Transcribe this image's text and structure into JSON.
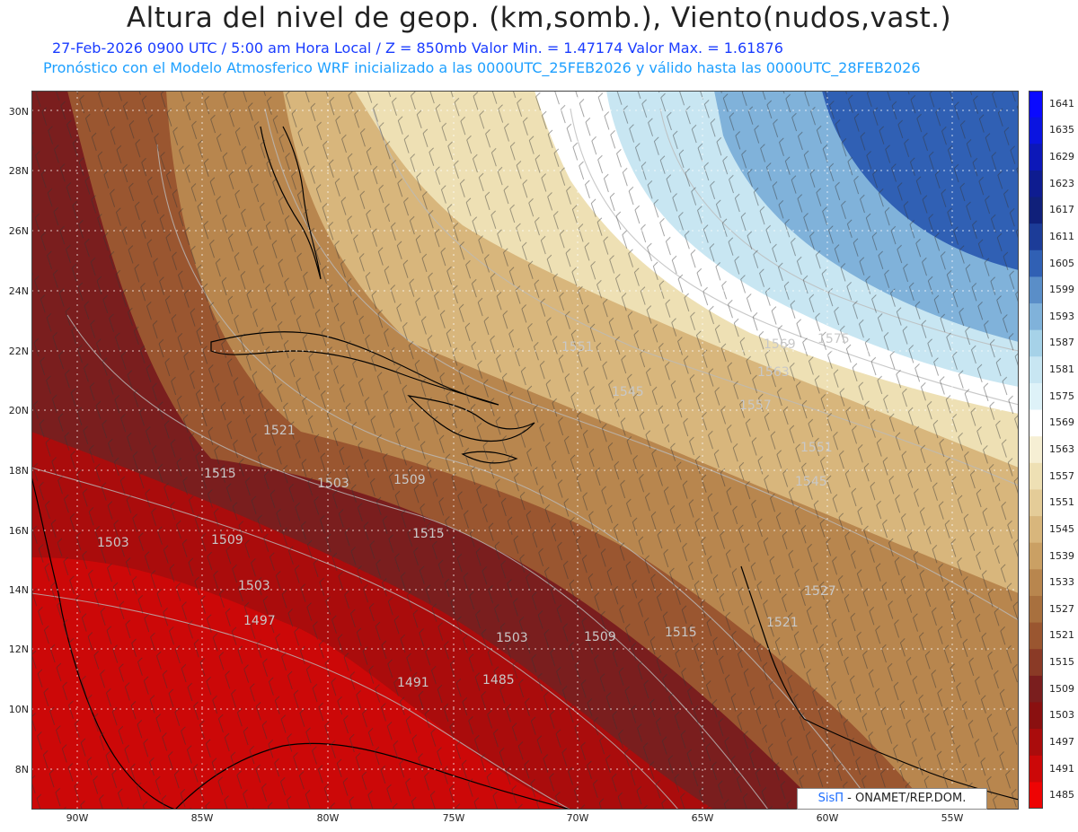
{
  "header": {
    "title": "Altura del nivel de geop. (km,somb.), Viento(nudos,vast.)",
    "line1": "27-Feb-2026  0900 UTC / 5:00 am Hora Local / Z = 850mb    Valor Min. = 1.47174  Valor Max. = 1.61876",
    "line2": "Pronóstico con el Modelo Atmosferico WRF inicializado a las 0000UTC_25FEB2026 y válido hasta las  0000UTC_28FEB2026"
  },
  "axes": {
    "lat_labels": [
      "30N",
      "28N",
      "26N",
      "24N",
      "22N",
      "20N",
      "18N",
      "16N",
      "14N",
      "12N",
      "10N",
      "8N"
    ],
    "lon_labels": [
      "90W",
      "85W",
      "80W",
      "75W",
      "70W",
      "65W",
      "60W",
      "55W"
    ]
  },
  "contours": {
    "labels": [
      "1569",
      "1575",
      "1563",
      "1551",
      "1545",
      "1557",
      "1551",
      "1545",
      "1527",
      "1521",
      "1521",
      "1515",
      "1515",
      "1509",
      "1509",
      "1503",
      "1503",
      "1497",
      "1491",
      "1485",
      "1515",
      "1503",
      "1509",
      "1503"
    ]
  },
  "colorbar": {
    "levels": [
      "1641",
      "1635",
      "1629",
      "1623",
      "1617",
      "1611",
      "1605",
      "1599",
      "1593",
      "1587",
      "1581",
      "1575",
      "1569",
      "1563",
      "1557",
      "1551",
      "1545",
      "1539",
      "1533",
      "1527",
      "1521",
      "1515",
      "1509",
      "1503",
      "1497",
      "1491",
      "1485"
    ],
    "colors": [
      "#0a0aff",
      "#0a14e0",
      "#0c18b8",
      "#0e1c90",
      "#10207a",
      "#1c3c98",
      "#3060b4",
      "#5a8ec8",
      "#80b2da",
      "#a6d2e8",
      "#c8e6f2",
      "#def2f8",
      "#ffffff",
      "#f6efd4",
      "#eee0b4",
      "#e4cc98",
      "#d8b67c",
      "#caa064",
      "#b8864e",
      "#a8703e",
      "#9a5630",
      "#8a3a26",
      "#7a1e1e",
      "#8a1010",
      "#aa0c0c",
      "#cc0808",
      "#ee0404"
    ]
  },
  "credit": {
    "brand": "SisΠ",
    "text": "- ONAMET/REP.DOM."
  }
}
